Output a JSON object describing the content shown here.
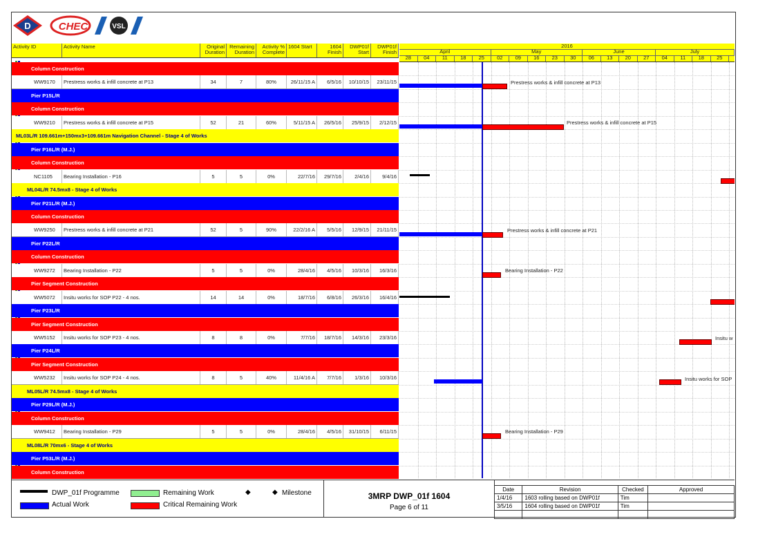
{
  "logos": {
    "d": "D",
    "chec": "CHEC",
    "vsl": "VSL"
  },
  "header": {
    "activity_id": "Activity ID",
    "activity_name": "Activity Name",
    "orig_dur": "Original Duration",
    "rem_dur": "Remaining Duration",
    "pct": "Activity % Complete",
    "start": "1604 Start",
    "finish": "1604 Finish",
    "dwp_start": "DWP01f Start",
    "dwp_finish": "DWP01f Finish",
    "year": "2016",
    "months": [
      "April",
      "May",
      "June",
      "July"
    ],
    "weeks": [
      "28",
      "04",
      "11",
      "18",
      "25",
      "02",
      "09",
      "16",
      "23",
      "30",
      "06",
      "13",
      "20",
      "27",
      "04",
      "11",
      "18",
      "25"
    ]
  },
  "rows": [
    {
      "type": "red",
      "label": "Column Construction"
    },
    {
      "type": "act",
      "id": "WW9170",
      "name": "Prestress works & infill concrete at P13",
      "orig": "34",
      "rem": "7",
      "pct": "80%",
      "start": "26/11/15 A",
      "finish": "6/5/16",
      "dstart": "10/10/15",
      "dfinish": "23/11/15"
    },
    {
      "type": "blue",
      "label": "Pier P15L/R"
    },
    {
      "type": "red",
      "label": "Column Construction"
    },
    {
      "type": "act",
      "id": "WW9210",
      "name": "Prestress works & infill concrete at P15",
      "orig": "52",
      "rem": "21",
      "pct": "60%",
      "start": "5/11/15 A",
      "finish": "26/5/16",
      "dstart": "25/9/15",
      "dfinish": "2/12/15"
    },
    {
      "type": "yel",
      "label": "ML03L/R 109.661m+150mx3+109.661m Navigation Channel - Stage 4 of Works"
    },
    {
      "type": "blue",
      "label": "Pier P16L/R (M.J.)"
    },
    {
      "type": "red",
      "label": "Column Construction"
    },
    {
      "type": "act",
      "id": "NC1105",
      "name": "Bearing Installation - P16",
      "orig": "5",
      "rem": "5",
      "pct": "0%",
      "start": "22/7/16",
      "finish": "29/7/16",
      "dstart": "2/4/16",
      "dfinish": "9/4/16"
    },
    {
      "type": "yel2",
      "label": "ML04L/R 74.5mx8 - Stage 4 of Works"
    },
    {
      "type": "blue",
      "label": "Pier P21L/R (M.J.)"
    },
    {
      "type": "red",
      "label": "Column Construction"
    },
    {
      "type": "act",
      "id": "WW9250",
      "name": "Prestress works & infill concrete at P21",
      "orig": "52",
      "rem": "5",
      "pct": "90%",
      "start": "22/2/16 A",
      "finish": "5/5/16",
      "dstart": "12/9/15",
      "dfinish": "21/11/15"
    },
    {
      "type": "blue",
      "label": "Pier P22L/R"
    },
    {
      "type": "red",
      "label": "Column Construction"
    },
    {
      "type": "act",
      "id": "WW9272",
      "name": "Bearing Installation - P22",
      "orig": "5",
      "rem": "5",
      "pct": "0%",
      "start": "28/4/16",
      "finish": "4/5/16",
      "dstart": "10/3/16",
      "dfinish": "16/3/16"
    },
    {
      "type": "red",
      "label": "Pier Segment Construction"
    },
    {
      "type": "act",
      "id": "WW5072",
      "name": "Insitu works for SOP P22 - 4 nos.",
      "orig": "14",
      "rem": "14",
      "pct": "0%",
      "start": "18/7/16",
      "finish": "6/8/16",
      "dstart": "26/3/16",
      "dfinish": "16/4/16"
    },
    {
      "type": "blue",
      "label": "Pier P23L/R"
    },
    {
      "type": "red",
      "label": "Pier Segment Construction"
    },
    {
      "type": "act",
      "id": "WW5152",
      "name": "Insitu works for SOP P23 - 4 nos.",
      "orig": "8",
      "rem": "8",
      "pct": "0%",
      "start": "7/7/16",
      "finish": "18/7/16",
      "dstart": "14/3/16",
      "dfinish": "23/3/16"
    },
    {
      "type": "blue",
      "label": "Pier P24L/R"
    },
    {
      "type": "red",
      "label": "Pier Segment Construction"
    },
    {
      "type": "act",
      "id": "WW5232",
      "name": "Insitu works for SOP P24 - 4 nos.",
      "orig": "8",
      "rem": "5",
      "pct": "40%",
      "start": "11/4/16 A",
      "finish": "7/7/16",
      "dstart": "1/3/16",
      "dfinish": "10/3/16"
    },
    {
      "type": "yel2",
      "label": "ML05L/R 74.5mx8 - Stage 4 of Works"
    },
    {
      "type": "blue",
      "label": "Pier P29L/R (M.J.)"
    },
    {
      "type": "red",
      "label": "Column Construction"
    },
    {
      "type": "act",
      "id": "WW9412",
      "name": "Bearing Installation - P29",
      "orig": "5",
      "rem": "5",
      "pct": "0%",
      "start": "28/4/16",
      "finish": "4/5/16",
      "dstart": "31/10/15",
      "dfinish": "6/11/15"
    },
    {
      "type": "yel2",
      "label": "ML08L/R 70mx6 - Stage 4 of Works"
    },
    {
      "type": "blue",
      "label": "Pier P53L/R (M.J.)"
    },
    {
      "type": "red",
      "label": "Column Construction"
    }
  ],
  "bar_labels": {
    "p13": "Prestress works & infill concrete at P13",
    "p15": "Prestress works & infill concrete at P15",
    "p21": "Prestress works & infill concrete at P21",
    "p22": "Bearing Installation - P22",
    "p23": "Insitu w",
    "p24": "Insitu works for SOP",
    "p29": "Bearing Installation - P29"
  },
  "legend": {
    "programme": "DWP_01f Programme",
    "actual": "Actual Work",
    "remaining": "Remaining Work",
    "critical": "Critical Remaining Work",
    "milestone": "Milestone",
    "title": "3MRP DWP_01f 1604",
    "page": "Page 6 of 11"
  },
  "revisions": {
    "headers": [
      "Date",
      "Revision",
      "Checked",
      "Approved"
    ],
    "rows": [
      [
        "1/4/16",
        "1603 rolling based on DWP01f",
        "Tim",
        ""
      ],
      [
        "3/5/16",
        "1604 rolling based on DWP01f",
        "Tim",
        ""
      ]
    ]
  },
  "colors": {
    "red": "#ff0000",
    "blue": "#0000ff",
    "yellow": "#ffff00",
    "green": "#90ee90",
    "black": "#000000"
  }
}
